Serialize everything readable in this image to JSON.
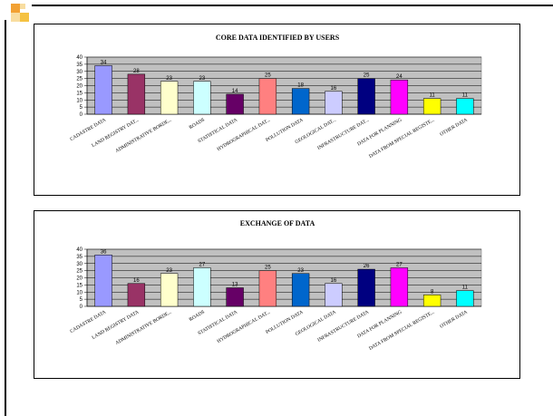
{
  "colors": {
    "accent_orange": "#f2a134",
    "accent_yellow": "#f5c242",
    "accent_light": "#f8dda0",
    "plot_bg": "#c0c0c0",
    "bar_outline": "#000000"
  },
  "bar_colors": [
    "#9999ff",
    "#993366",
    "#ffffcc",
    "#ccffff",
    "#660066",
    "#ff8080",
    "#0066cc",
    "#ccccff",
    "#000080",
    "#ff00ff",
    "#ffff00",
    "#00ffff"
  ],
  "chart_data": [
    {
      "type": "bar",
      "title": "CORE DATA IDENTIFIED BY USERS",
      "categories": [
        "CADASTRE DATA",
        "LAND REGISTRY DAT...",
        "ADMINISTRATIVE BORDE...",
        "ROADS",
        "STATISTICAL DATA",
        "HYDROGRAPHICAL DAT...",
        "POLLUTION DATA",
        "GEOLOGICAL DAT...",
        "INFRASTRUCTURE DAT...",
        "DATA FOR PLANNING",
        "DATA FROM SPECIAL REGISTE...",
        "OTHER DATA"
      ],
      "values": [
        34,
        28,
        23,
        23,
        14,
        25,
        18,
        16,
        25,
        24,
        11,
        11
      ],
      "yticks": [
        0,
        5,
        10,
        15,
        20,
        25,
        30,
        35,
        40
      ],
      "ylim": [
        0,
        40
      ],
      "grid": true,
      "legend": "none"
    },
    {
      "type": "bar",
      "title": "EXCHANGE OF DATA",
      "categories": [
        "CADASTRE DATA",
        "LAND REGISTRY DATA",
        "ADMINISTRATIVE BORDE...",
        "ROADS",
        "STATISTICAL DATA",
        "HYDROGRAPHICAL DAT...",
        "POLLUTION DATA",
        "GEOLOGICAL DATA",
        "INFRASTRUCTURE DATA",
        "DATA FOR PLANNING",
        "DATA FROM SPECIAL REGISTE...",
        "OTHER DATA"
      ],
      "values": [
        36,
        16,
        23,
        27,
        13,
        25,
        23,
        16,
        26,
        27,
        8,
        11
      ],
      "yticks": [
        0,
        5,
        10,
        15,
        20,
        25,
        30,
        35,
        40
      ],
      "ylim": [
        0,
        40
      ],
      "grid": true,
      "legend": "none"
    }
  ]
}
